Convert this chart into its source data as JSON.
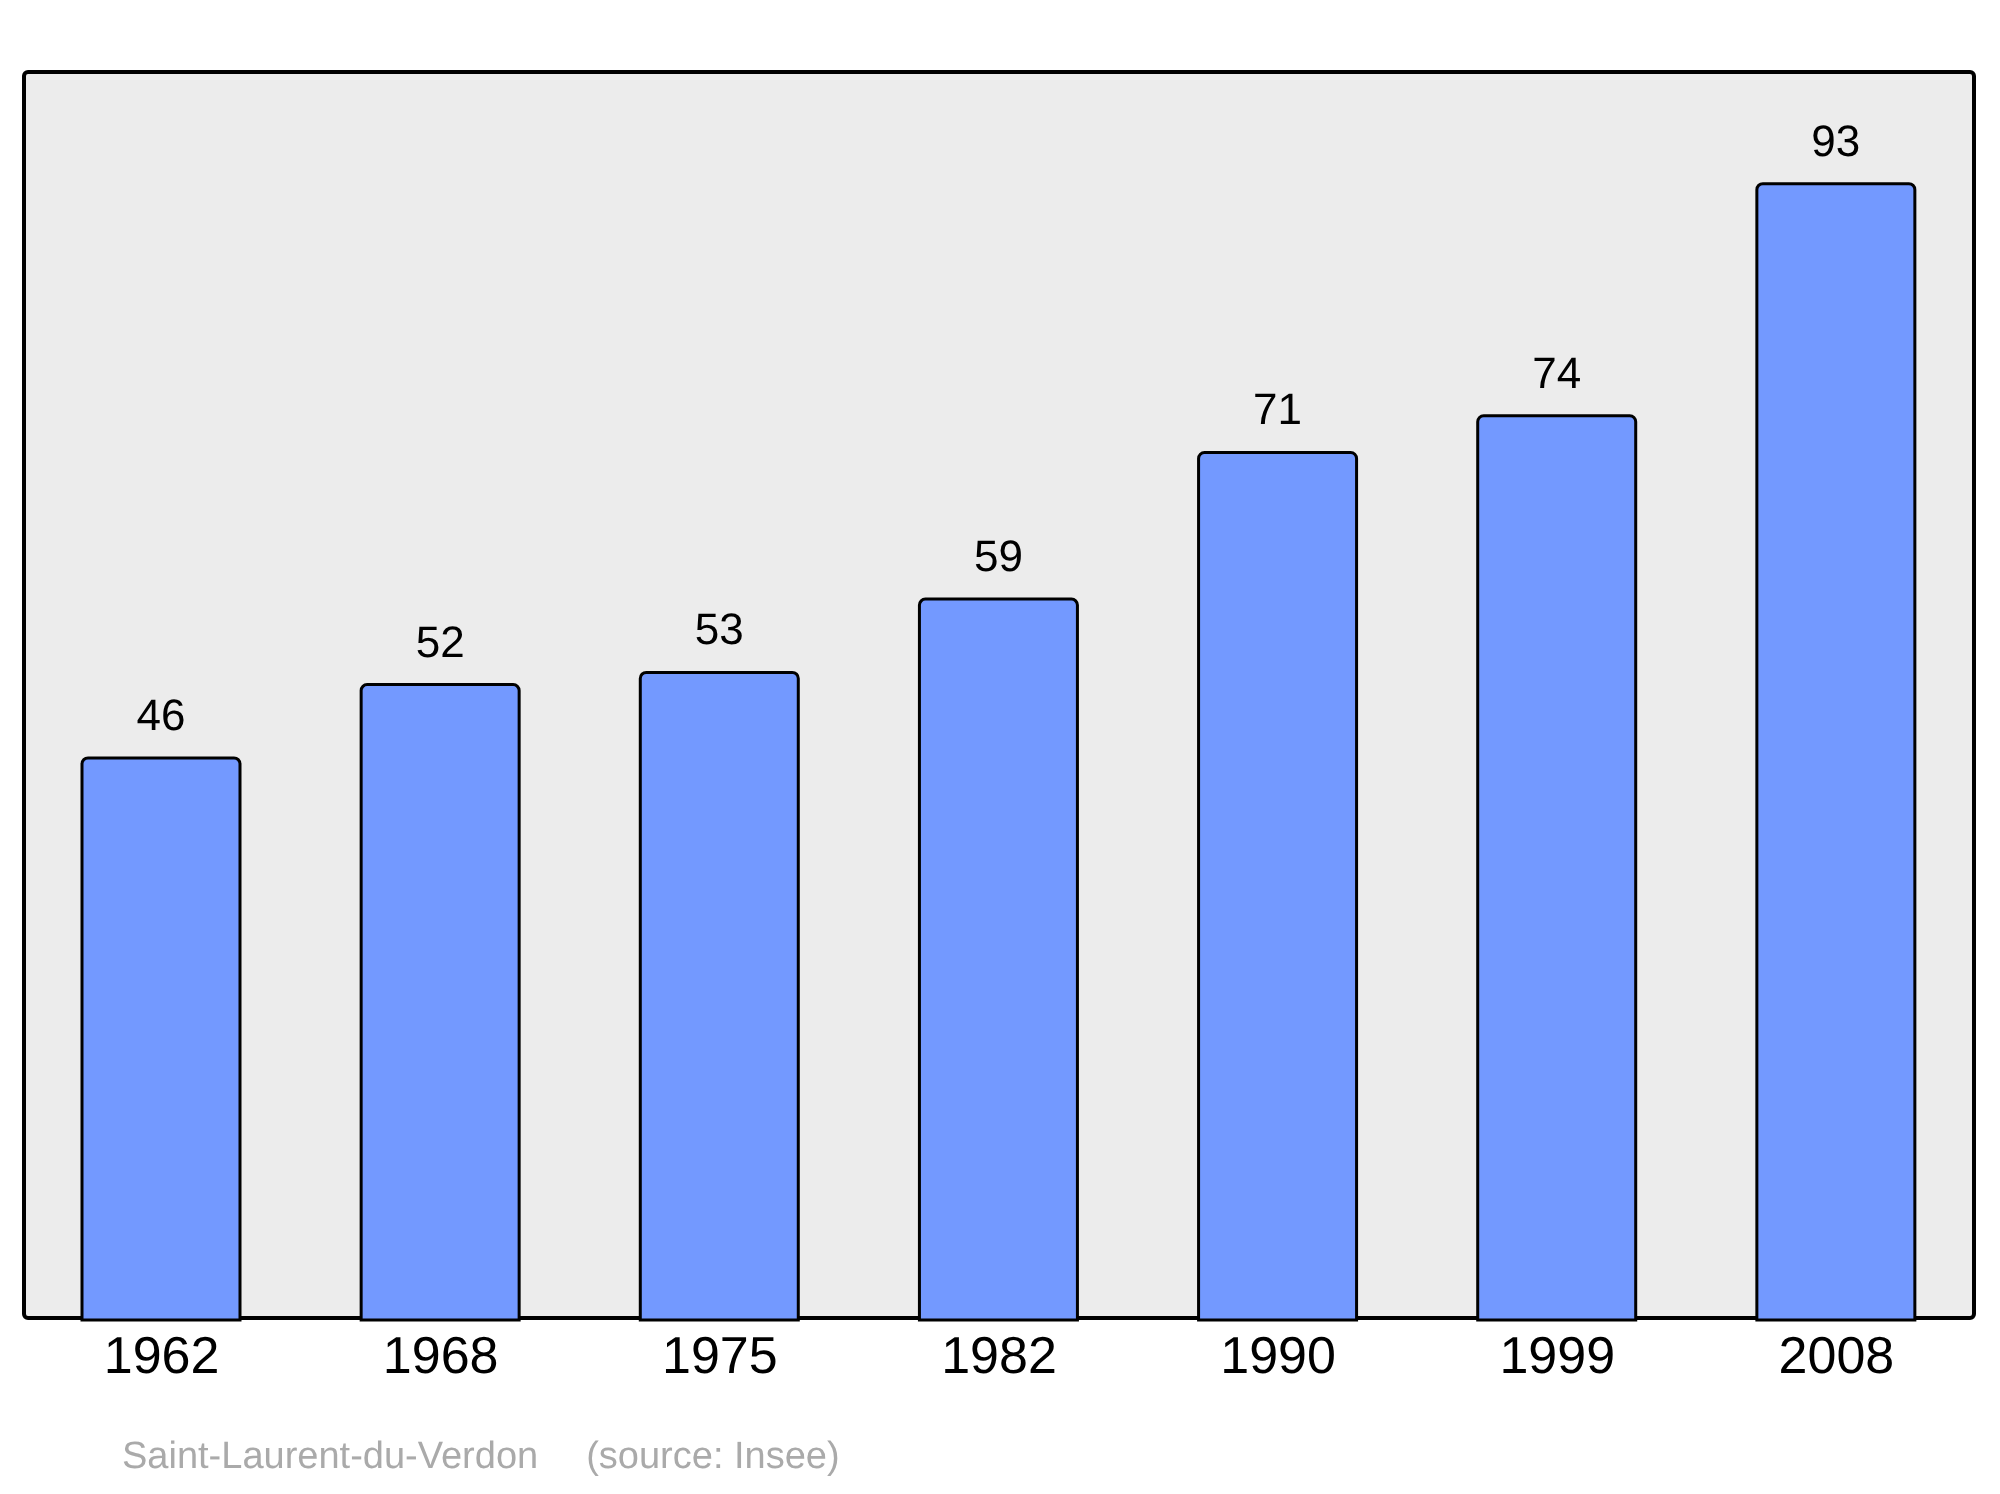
{
  "chart_data": {
    "type": "bar",
    "categories": [
      "1962",
      "1968",
      "1975",
      "1982",
      "1990",
      "1999",
      "2008"
    ],
    "values": [
      46,
      52,
      53,
      59,
      71,
      74,
      93
    ],
    "color": "#7399ff",
    "tick_labels": "x",
    "data_labels": true,
    "annotations": [
      "Saint-Laurent-du-Verdon",
      "(source: Insee)"
    ]
  }
}
